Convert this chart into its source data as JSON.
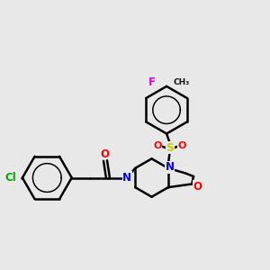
{
  "background_color": "#e8e8e8",
  "bond_color": "#000000",
  "bond_width": 1.8,
  "atom_colors": {
    "F": "#dd00dd",
    "Cl": "#00aa00",
    "O": "#ff0000",
    "N": "#0000ff",
    "S": "#cccc00",
    "C": "#000000"
  },
  "figsize": [
    3.0,
    3.0
  ],
  "dpi": 100
}
